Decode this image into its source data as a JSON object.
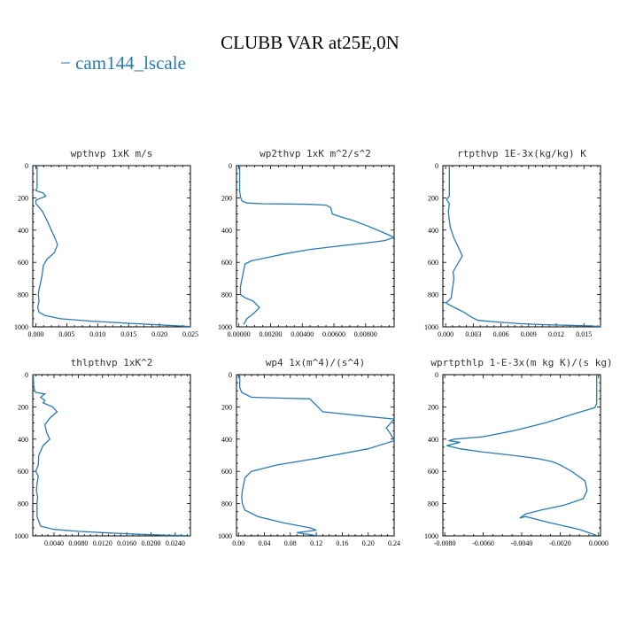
{
  "figure": {
    "title": "CLUBB VAR at25E,0N",
    "legend": "− cam144_lscale",
    "line_color": "#2a7ab0"
  },
  "chart_data": [
    {
      "type": "line",
      "title": "wpthvp   1xK m/s",
      "xlim": [
        -0.0005,
        0.025
      ],
      "ylim": [
        1000,
        0
      ],
      "xticks": [
        0.0,
        0.005,
        0.01,
        0.015,
        0.02,
        0.025
      ],
      "xtick_labels": [
        "0.000",
        "0.005",
        "0.010",
        "0.015",
        "0.020",
        "0.025"
      ],
      "yticks": [
        0,
        200,
        400,
        600,
        800,
        1000
      ],
      "series": [
        {
          "x": [
            0.0002,
            0.0002,
            0.0002,
            0.0002,
            0.0001,
            0.0,
            0.0012,
            0.0016,
            0.0006,
            0.0,
            0.0,
            0.001,
            0.0018,
            0.0025,
            0.003,
            0.0035,
            0.003,
            0.0018,
            0.0012,
            0.001,
            0.0008,
            0.0005,
            0.0004,
            0.0005,
            0.0003,
            0.0005,
            0.0015,
            0.004,
            0.009,
            0.015,
            0.02,
            0.025
          ],
          "y": [
            0,
            50,
            100,
            135,
            145,
            155,
            170,
            190,
            205,
            215,
            235,
            280,
            340,
            400,
            440,
            490,
            540,
            580,
            620,
            680,
            720,
            770,
            800,
            840,
            880,
            910,
            930,
            950,
            965,
            978,
            988,
            998
          ]
        }
      ]
    },
    {
      "type": "line",
      "title": "wp2thvp   1xK m^2/s^2",
      "xlim": [
        -0.00015,
        0.0098
      ],
      "ylim": [
        1000,
        0
      ],
      "xticks": [
        0.0,
        0.002,
        0.004,
        0.006,
        0.008
      ],
      "xtick_labels": [
        "0.00000",
        "0.00200",
        "0.00400",
        "0.00600",
        "0.00800"
      ],
      "yticks": [
        0,
        200,
        400,
        600,
        800,
        1000
      ],
      "series": [
        {
          "x": [
            5e-05,
            5e-05,
            5e-05,
            5e-05,
            5e-05,
            0.0001,
            0.0002,
            0.0005,
            0.0015,
            0.003,
            0.0045,
            0.0055,
            0.0058,
            0.0059,
            0.0065,
            0.0072,
            0.008,
            0.009,
            0.0098,
            0.0092,
            0.008,
            0.0062,
            0.0045,
            0.003,
            0.0018,
            0.0008,
            0.0004,
            0.0003,
            0.0002,
            0.0001,
            0.0001,
            0.0004,
            0.0009,
            0.0013,
            0.0009,
            0.0005,
            0.0003
          ],
          "y": [
            0,
            40,
            90,
            130,
            160,
            195,
            220,
            232,
            236,
            238,
            240,
            245,
            260,
            300,
            320,
            340,
            370,
            410,
            445,
            465,
            480,
            500,
            520,
            545,
            570,
            590,
            610,
            650,
            700,
            750,
            800,
            820,
            840,
            880,
            920,
            950,
            985
          ]
        }
      ]
    },
    {
      "type": "line",
      "title": "rtpthvp   1E-3x(kg/kg) K",
      "xlim": [
        -0.0003,
        0.0168
      ],
      "ylim": [
        1000,
        0
      ],
      "xticks": [
        0.0,
        0.003,
        0.006,
        0.009,
        0.012,
        0.015
      ],
      "xtick_labels": [
        "0.000",
        "0.003",
        "0.006",
        "0.009",
        "0.012",
        "0.015"
      ],
      "yticks": [
        0,
        200,
        400,
        600,
        800,
        1000
      ],
      "series": [
        {
          "x": [
            0.0004,
            0.0004,
            0.0004,
            0.0004,
            0.0004,
            0.0001,
            0.0004,
            0.0003,
            0.0005,
            0.0009,
            0.0015,
            0.0018,
            0.0012,
            0.0008,
            0.0009,
            0.0007,
            0.0006,
            0.0003,
            0.0,
            0.0006,
            0.0013,
            0.002,
            0.0028,
            0.0035,
            0.0055,
            0.008,
            0.0105,
            0.013,
            0.0155,
            0.0168
          ],
          "y": [
            0,
            60,
            120,
            160,
            190,
            210,
            235,
            290,
            380,
            450,
            520,
            560,
            620,
            660,
            700,
            780,
            820,
            840,
            850,
            870,
            890,
            910,
            940,
            960,
            970,
            980,
            986,
            990,
            994,
            998
          ]
        }
      ]
    },
    {
      "type": "line",
      "title": "thlpthvp   1xK^2",
      "xlim": [
        0.0005,
        0.0265
      ],
      "ylim": [
        1000,
        0
      ],
      "xticks": [
        0.004,
        0.008,
        0.012,
        0.016,
        0.02,
        0.024
      ],
      "xtick_labels": [
        "0.0040",
        "0.0080",
        "0.0120",
        "0.0160",
        "0.0200",
        "0.0240"
      ],
      "yticks": [
        0,
        200,
        400,
        600,
        800,
        1000
      ],
      "series": [
        {
          "x": [
            0.0006,
            0.0006,
            0.0008,
            0.001,
            0.0025,
            0.0018,
            0.0025,
            0.0022,
            0.0038,
            0.0045,
            0.0033,
            0.0025,
            0.0028,
            0.0033,
            0.0022,
            0.0015,
            0.0014,
            0.001,
            0.0014,
            0.0012,
            0.0011,
            0.0013,
            0.0012,
            0.0012,
            0.0018,
            0.004,
            0.008,
            0.013,
            0.018,
            0.022,
            0.026
          ],
          "y": [
            0,
            60,
            100,
            110,
            120,
            140,
            160,
            175,
            200,
            230,
            270,
            310,
            360,
            400,
            440,
            500,
            560,
            600,
            630,
            680,
            720,
            760,
            800,
            880,
            940,
            960,
            972,
            982,
            990,
            995,
            998
          ]
        }
      ]
    },
    {
      "type": "line",
      "title": "wp4   1x(m^4)/(s^4)",
      "xlim": [
        -0.003,
        0.24
      ],
      "ylim": [
        1000,
        0
      ],
      "xticks": [
        0.0,
        0.04,
        0.08,
        0.12,
        0.16,
        0.2,
        0.24
      ],
      "xtick_labels": [
        "0.00",
        "0.04",
        "0.08",
        "0.12",
        "0.16",
        "0.20",
        "0.24"
      ],
      "yticks": [
        0,
        200,
        400,
        600,
        800,
        1000
      ],
      "series": [
        {
          "x": [
            0.002,
            0.002,
            0.002,
            0.005,
            0.02,
            0.06,
            0.11,
            0.12,
            0.13,
            0.2,
            0.24,
            0.235,
            0.228,
            0.235,
            0.24,
            0.2,
            0.12,
            0.06,
            0.02,
            0.01,
            0.008,
            0.006,
            0.005,
            0.006,
            0.01,
            0.03,
            0.07,
            0.11,
            0.12,
            0.09,
            0.12
          ],
          "y": [
            0,
            40,
            80,
            110,
            140,
            145,
            150,
            190,
            230,
            260,
            275,
            300,
            330,
            370,
            410,
            460,
            520,
            560,
            600,
            640,
            680,
            720,
            760,
            800,
            840,
            880,
            920,
            950,
            965,
            980,
            998
          ]
        }
      ]
    },
    {
      "type": "line",
      "title": "wprtpthlp   1-E-3x(m kg K)/(s kg)",
      "xlim": [
        -0.0081,
        0.0001
      ],
      "ylim": [
        1000,
        0
      ],
      "xticks": [
        -0.008,
        -0.006,
        -0.004,
        -0.002,
        0.0
      ],
      "xtick_labels": [
        "-0.0080",
        "-0.0060",
        "-0.0040",
        "-0.0020",
        "0.0000"
      ],
      "yticks": [
        0,
        200,
        400,
        600,
        800,
        1000
      ],
      "series": [
        {
          "x": [
            -0.0001,
            -0.0001,
            -0.0001,
            -0.0001,
            -0.0002,
            -0.0012,
            -0.0028,
            -0.0045,
            -0.006,
            -0.0075,
            -0.0078,
            -0.0072,
            -0.0079,
            -0.0072,
            -0.006,
            -0.0045,
            -0.0032,
            -0.0024,
            -0.002,
            -0.0014,
            -0.0007,
            -0.0006,
            -0.0008,
            -0.0018,
            -0.003,
            -0.0038,
            -0.0041,
            -0.0038,
            -0.0025,
            -0.001,
            -0.0004,
            -0.0001
          ],
          "y": [
            0,
            60,
            120,
            180,
            205,
            240,
            300,
            350,
            385,
            400,
            410,
            420,
            440,
            460,
            480,
            500,
            520,
            540,
            560,
            600,
            660,
            720,
            770,
            810,
            840,
            865,
            890,
            880,
            920,
            960,
            985,
            998
          ]
        }
      ]
    }
  ]
}
